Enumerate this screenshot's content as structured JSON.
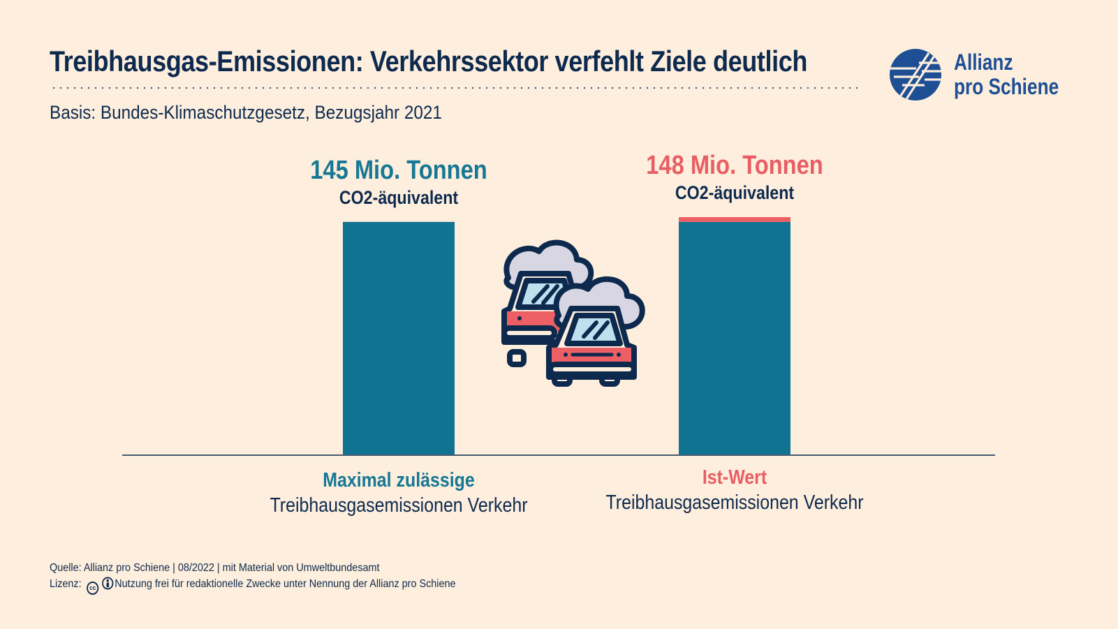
{
  "header": {
    "title": "Treibhausgas-Emissionen: Verkehrssektor verfehlt Ziele deutlich",
    "subtitle": "Basis: Bundes-Klimaschutzgesetz, Bezugsjahr 2021"
  },
  "logo": {
    "line1": "Allianz",
    "line2": "pro Schiene",
    "icon": "allianz-pro-schiene-logo"
  },
  "chart_data": {
    "type": "bar",
    "categories": [
      "Maximal zulässige Treibhausgasemissionen Verkehr",
      "Ist-Wert Treibhausgasemissionen Verkehr"
    ],
    "values": [
      145,
      148
    ],
    "unit": "Mio. Tonnen CO2-äquivalent",
    "ylim": [
      0,
      148
    ],
    "bars": [
      {
        "value": 145,
        "value_label": "145 Mio. Tonnen",
        "unit_label": "CO2-äquivalent",
        "category_top": "Maximal zulässige",
        "category_bottom": "Treibhausgasemissionen Verkehr",
        "segments": [
          {
            "value": 145,
            "color": "#0f7391"
          }
        ],
        "label_color": "#167894"
      },
      {
        "value": 148,
        "value_label": "148 Mio. Tonnen",
        "unit_label": "CO2-äquivalent",
        "category_top": "Ist-Wert",
        "category_bottom": "Treibhausgasemissionen Verkehr",
        "segments": [
          {
            "value": 145,
            "color": "#0f7391"
          },
          {
            "value": 3,
            "color": "#ec5f64"
          }
        ],
        "label_color": "#e95d64"
      }
    ],
    "illustration": "cars-exhaust-icon"
  },
  "footer": {
    "source": "Quelle: Allianz pro Schiene | 08/2022 | mit Material von Umweltbundesamt",
    "license_label": "Lizenz:",
    "license_text": "Nutzung frei für redaktionelle Zwecke unter Nennung der Allianz pro Schiene"
  },
  "colors": {
    "background": "#fdeedd",
    "navy": "#0d2a4e",
    "teal": "#0f7391",
    "coral": "#ec5f64",
    "brand_blue": "#1e4f94"
  }
}
